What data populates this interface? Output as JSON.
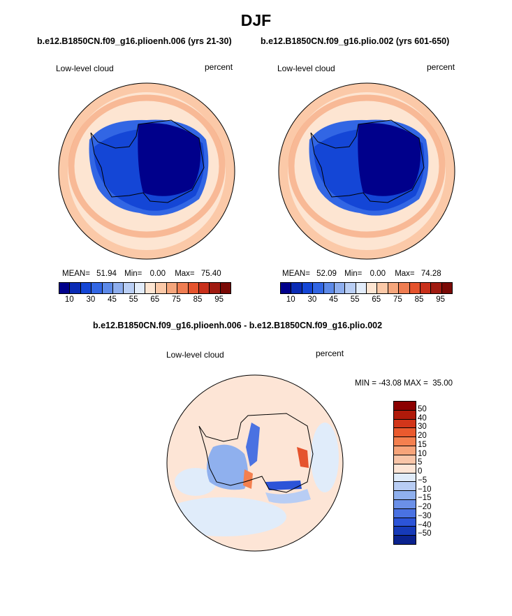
{
  "page_title": "DJF",
  "chart_data": [
    {
      "type": "heatmap",
      "title": "b.e12.B1850CN.f09_g16.plioenh.006 (yrs 21-30)",
      "variable": "Low-level cloud",
      "units": "percent",
      "stats": {
        "mean_label": "MEAN=",
        "mean": "51.94",
        "min_label": "Min=",
        "min": "0.00",
        "max_label": "Max=",
        "max": "75.40"
      },
      "colorbar": {
        "colors": [
          "#00008b",
          "#0a2bb5",
          "#1446d6",
          "#3266e4",
          "#5d8ae8",
          "#8eaeee",
          "#b9cef4",
          "#e2ecfa",
          "#fde5d2",
          "#fbc9a8",
          "#f5a67c",
          "#ef7d52",
          "#e5532d",
          "#c9301b",
          "#a01a10",
          "#7a0a06"
        ],
        "tick_labels": [
          "10",
          "30",
          "45",
          "55",
          "65",
          "75",
          "85",
          "95"
        ]
      }
    },
    {
      "type": "heatmap",
      "title": "b.e12.B1850CN.f09_g16.plio.002 (yrs 601-650)",
      "variable": "Low-level cloud",
      "units": "percent",
      "stats": {
        "mean_label": "MEAN=",
        "mean": "52.09",
        "min_label": "Min=",
        "min": "0.00",
        "max_label": "Max=",
        "max": "74.28"
      },
      "colorbar": {
        "colors": [
          "#00008b",
          "#0a2bb5",
          "#1446d6",
          "#3266e4",
          "#5d8ae8",
          "#8eaeee",
          "#b9cef4",
          "#e2ecfa",
          "#fde5d2",
          "#fbc9a8",
          "#f5a67c",
          "#ef7d52",
          "#e5532d",
          "#c9301b",
          "#a01a10",
          "#7a0a06"
        ],
        "tick_labels": [
          "10",
          "30",
          "45",
          "55",
          "65",
          "75",
          "85",
          "95"
        ]
      }
    },
    {
      "type": "heatmap",
      "title": "b.e12.B1850CN.f09_g16.plioenh.006 - b.e12.B1850CN.f09_g16.plio.002",
      "variable": "Low-level cloud",
      "units": "percent",
      "stats_text": "MIN = -43.08 MAX =  35.00",
      "colorbar": {
        "colors": [
          "#8b0000",
          "#b01a0a",
          "#d2361a",
          "#ea5a2e",
          "#f4804f",
          "#f7a47a",
          "#f9c5a8",
          "#fde5d6",
          "#e0ecfa",
          "#b8cdf4",
          "#8fb0ee",
          "#6b90e8",
          "#4a72e2",
          "#2c54d8",
          "#163ab8",
          "#0a228e"
        ],
        "tick_labels": [
          "50",
          "40",
          "30",
          "20",
          "15",
          "10",
          "5",
          "0",
          "−5",
          "−10",
          "−15",
          "−20",
          "−30",
          "−40",
          "−50"
        ]
      }
    }
  ]
}
